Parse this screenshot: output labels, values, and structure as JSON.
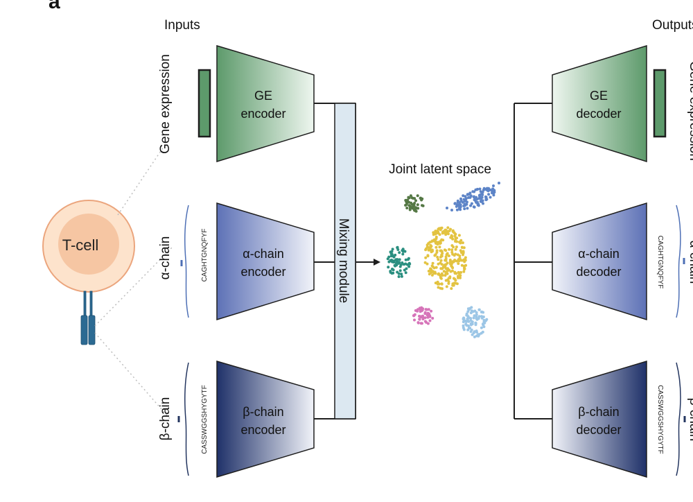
{
  "panel_label": "a",
  "headers": {
    "inputs": "Inputs",
    "outputs": "Outputs"
  },
  "cell": {
    "label": "T-cell"
  },
  "input_labels": {
    "gene": "Gene expression",
    "alpha": "α-chain",
    "beta": "β-chain"
  },
  "output_labels": {
    "gene": "Gene expression",
    "alpha": "α-chain",
    "beta": "β-chain"
  },
  "sequences": {
    "alpha": "CAGHTGNQFYF",
    "beta": "CASSWGGSHYGYTF"
  },
  "encoders": {
    "gene": {
      "line1": "GE",
      "line2": "encoder"
    },
    "alpha": {
      "line1": "α-chain",
      "line2": "encoder"
    },
    "beta": {
      "line1": "β-chain",
      "line2": "encoder"
    }
  },
  "decoders": {
    "gene": {
      "line1": "GE",
      "line2": "decoder"
    },
    "alpha": {
      "line1": "α-chain",
      "line2": "decoder"
    },
    "beta": {
      "line1": "β-chain",
      "line2": "decoder"
    }
  },
  "mixing_module": "Mixing module",
  "latent_space": "Joint latent space",
  "colors": {
    "ge_dark": "#5c9a6c",
    "ge_light": "#e3f0e5",
    "alpha_dark": "#5e72b6",
    "alpha_light": "#eceff8",
    "beta_dark": "#243772",
    "beta_light": "#eceff8",
    "cell_outer": "#fde2c8",
    "cell_inner": "#f6c7a3",
    "tcr": "#2c6a92",
    "mixing_fill": "#dde9f1",
    "cluster_darkgreen": "#557845",
    "cluster_blue": "#5d84c7",
    "cluster_yellow": "#e3c341",
    "cluster_teal": "#2b8f80",
    "cluster_pink": "#d674b9",
    "cluster_lightblue": "#9cc6e6"
  }
}
